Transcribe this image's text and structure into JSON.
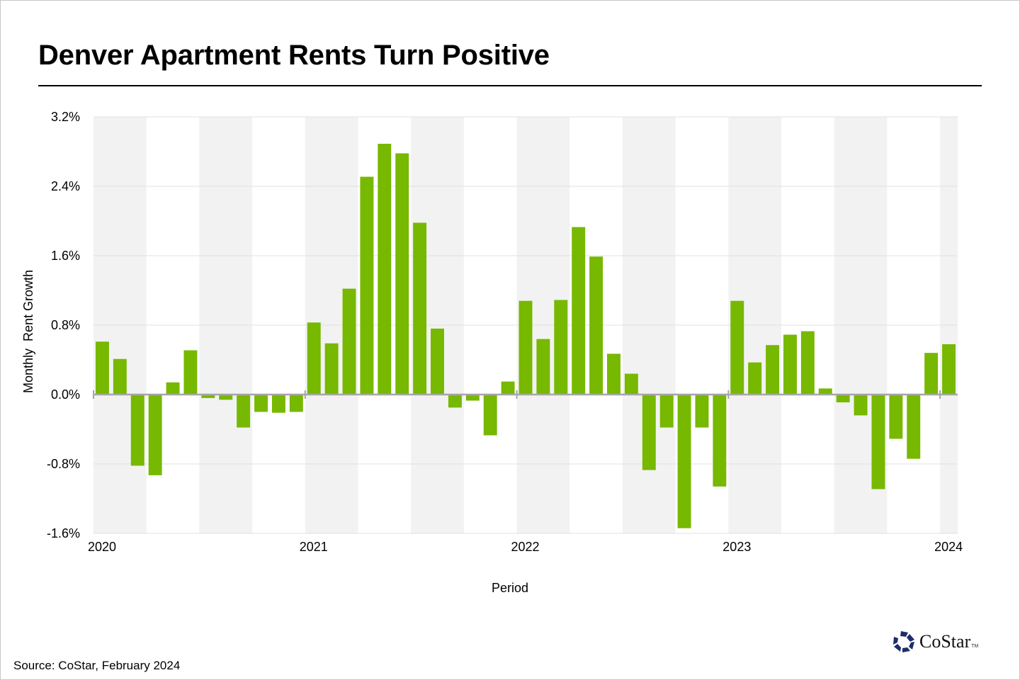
{
  "title": "Denver Apartment Rents Turn Positive",
  "source": "Source: CoStar, February 2024",
  "logo": {
    "name": "CoStar",
    "tm": "TM",
    "icon": "costar-star-icon",
    "color": "#1e2d6b"
  },
  "colors": {
    "bar": "#77b800",
    "band": "#f2f2f2",
    "grid": "#e0e0e0",
    "axis": "#a6a6a6"
  },
  "chart_data": {
    "type": "bar",
    "title": "Denver Apartment Rents Turn Positive",
    "xlabel": "Period",
    "ylabel": "Monthly  Rent Growth",
    "ylim": [
      -1.6,
      3.2
    ],
    "yticks": [
      3.2,
      2.4,
      1.6,
      0.8,
      0.0,
      -0.8,
      -1.6
    ],
    "ytick_labels": [
      "3.2%",
      "2.4%",
      "1.6%",
      "0.8%",
      "0.0%",
      "-0.8%",
      "-1.6%"
    ],
    "xtick_labels": [
      "2020",
      "2021",
      "2022",
      "2023",
      "2024"
    ],
    "grid": true,
    "legend": "none",
    "categories": [
      "2020-01",
      "2020-02",
      "2020-03",
      "2020-04",
      "2020-05",
      "2020-06",
      "2020-07",
      "2020-08",
      "2020-09",
      "2020-10",
      "2020-11",
      "2020-12",
      "2021-01",
      "2021-02",
      "2021-03",
      "2021-04",
      "2021-05",
      "2021-06",
      "2021-07",
      "2021-08",
      "2021-09",
      "2021-10",
      "2021-11",
      "2021-12",
      "2022-01",
      "2022-02",
      "2022-03",
      "2022-04",
      "2022-05",
      "2022-06",
      "2022-07",
      "2022-08",
      "2022-09",
      "2022-10",
      "2022-11",
      "2022-12",
      "2023-01",
      "2023-02",
      "2023-03",
      "2023-04",
      "2023-05",
      "2023-06",
      "2023-07",
      "2023-08",
      "2023-09",
      "2023-10",
      "2023-11",
      "2023-12",
      "2024-01"
    ],
    "values": [
      0.61,
      0.41,
      -0.82,
      -0.93,
      0.14,
      0.51,
      -0.04,
      -0.06,
      -0.38,
      -0.2,
      -0.21,
      -0.2,
      0.83,
      0.59,
      1.22,
      2.51,
      2.89,
      2.78,
      1.98,
      0.76,
      -0.15,
      -0.07,
      -0.47,
      0.15,
      1.08,
      0.64,
      1.09,
      1.93,
      1.59,
      0.47,
      0.24,
      -0.87,
      -0.38,
      -1.54,
      -0.38,
      -1.06,
      1.08,
      0.37,
      0.57,
      0.69,
      0.73,
      0.07,
      -0.09,
      -0.24,
      -1.09,
      -0.51,
      -0.74,
      0.48,
      0.58
    ]
  }
}
